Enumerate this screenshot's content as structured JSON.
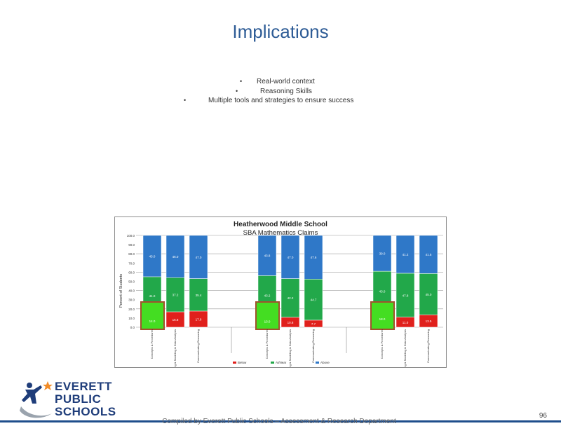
{
  "slide": {
    "title": "Implications",
    "bullets": [
      {
        "mark": "•",
        "text": "Real-world context"
      },
      {
        "mark": "•",
        "text": "Reasoning Skills"
      },
      {
        "mark": "•",
        "text": "Multiple  tools and strategies to ensure success"
      }
    ],
    "footer": "Compiled by Everett Public Schools – Assessment & Research Department",
    "page_number": "96"
  },
  "logo": {
    "lines": [
      "EVERETT",
      "PUBLIC",
      "SCHOOLS"
    ],
    "colors": {
      "figure": "#1f3d7a",
      "star": "#f28c28",
      "swoosh": "#9aa3ad"
    }
  },
  "chart_data": {
    "type": "bar",
    "stacked": true,
    "title": "Heatherwood Middle School",
    "subtitle": "SBA Mathematics Claims",
    "ylabel": "Percent of Students",
    "ylim": [
      0,
      100
    ],
    "yticks": [
      0,
      10,
      20,
      30,
      40,
      50,
      60,
      70,
      80,
      90,
      100
    ],
    "grid": true,
    "legend_position": "bottom",
    "categories": [
      "Concepts & Procedures",
      "Problem Solving & Modeling & Data Analysis",
      "Communicating Reasoning",
      "Concepts & Procedures",
      "Problem Solving & Modeling & Data Analysis",
      "Communicating Reasoning",
      "Concepts & Procedures",
      "Problem Solving & Modeling & Data Analysis",
      "Communicating Reasoning"
    ],
    "series": [
      {
        "name": "Below",
        "color": "#e0201c",
        "values": [
          14.0,
          16.8,
          17.6,
          13.0,
          10.8,
          7.7,
          18.0,
          11.0,
          13.5
        ]
      },
      {
        "name": "At/Near",
        "color": "#22a84a",
        "values": [
          41.0,
          37.2,
          35.4,
          43.2,
          42.2,
          44.7,
          43.0,
          47.8,
          45.0
        ]
      },
      {
        "name": "Above",
        "color": "#2f78c8",
        "values": [
          45.0,
          46.0,
          47.0,
          43.8,
          47.0,
          47.6,
          39.0,
          41.2,
          41.5
        ]
      }
    ],
    "highlighted_categories": [
      0,
      3,
      6
    ],
    "highlight_color": "#44dd22",
    "highlight_border": "#a0522d"
  }
}
